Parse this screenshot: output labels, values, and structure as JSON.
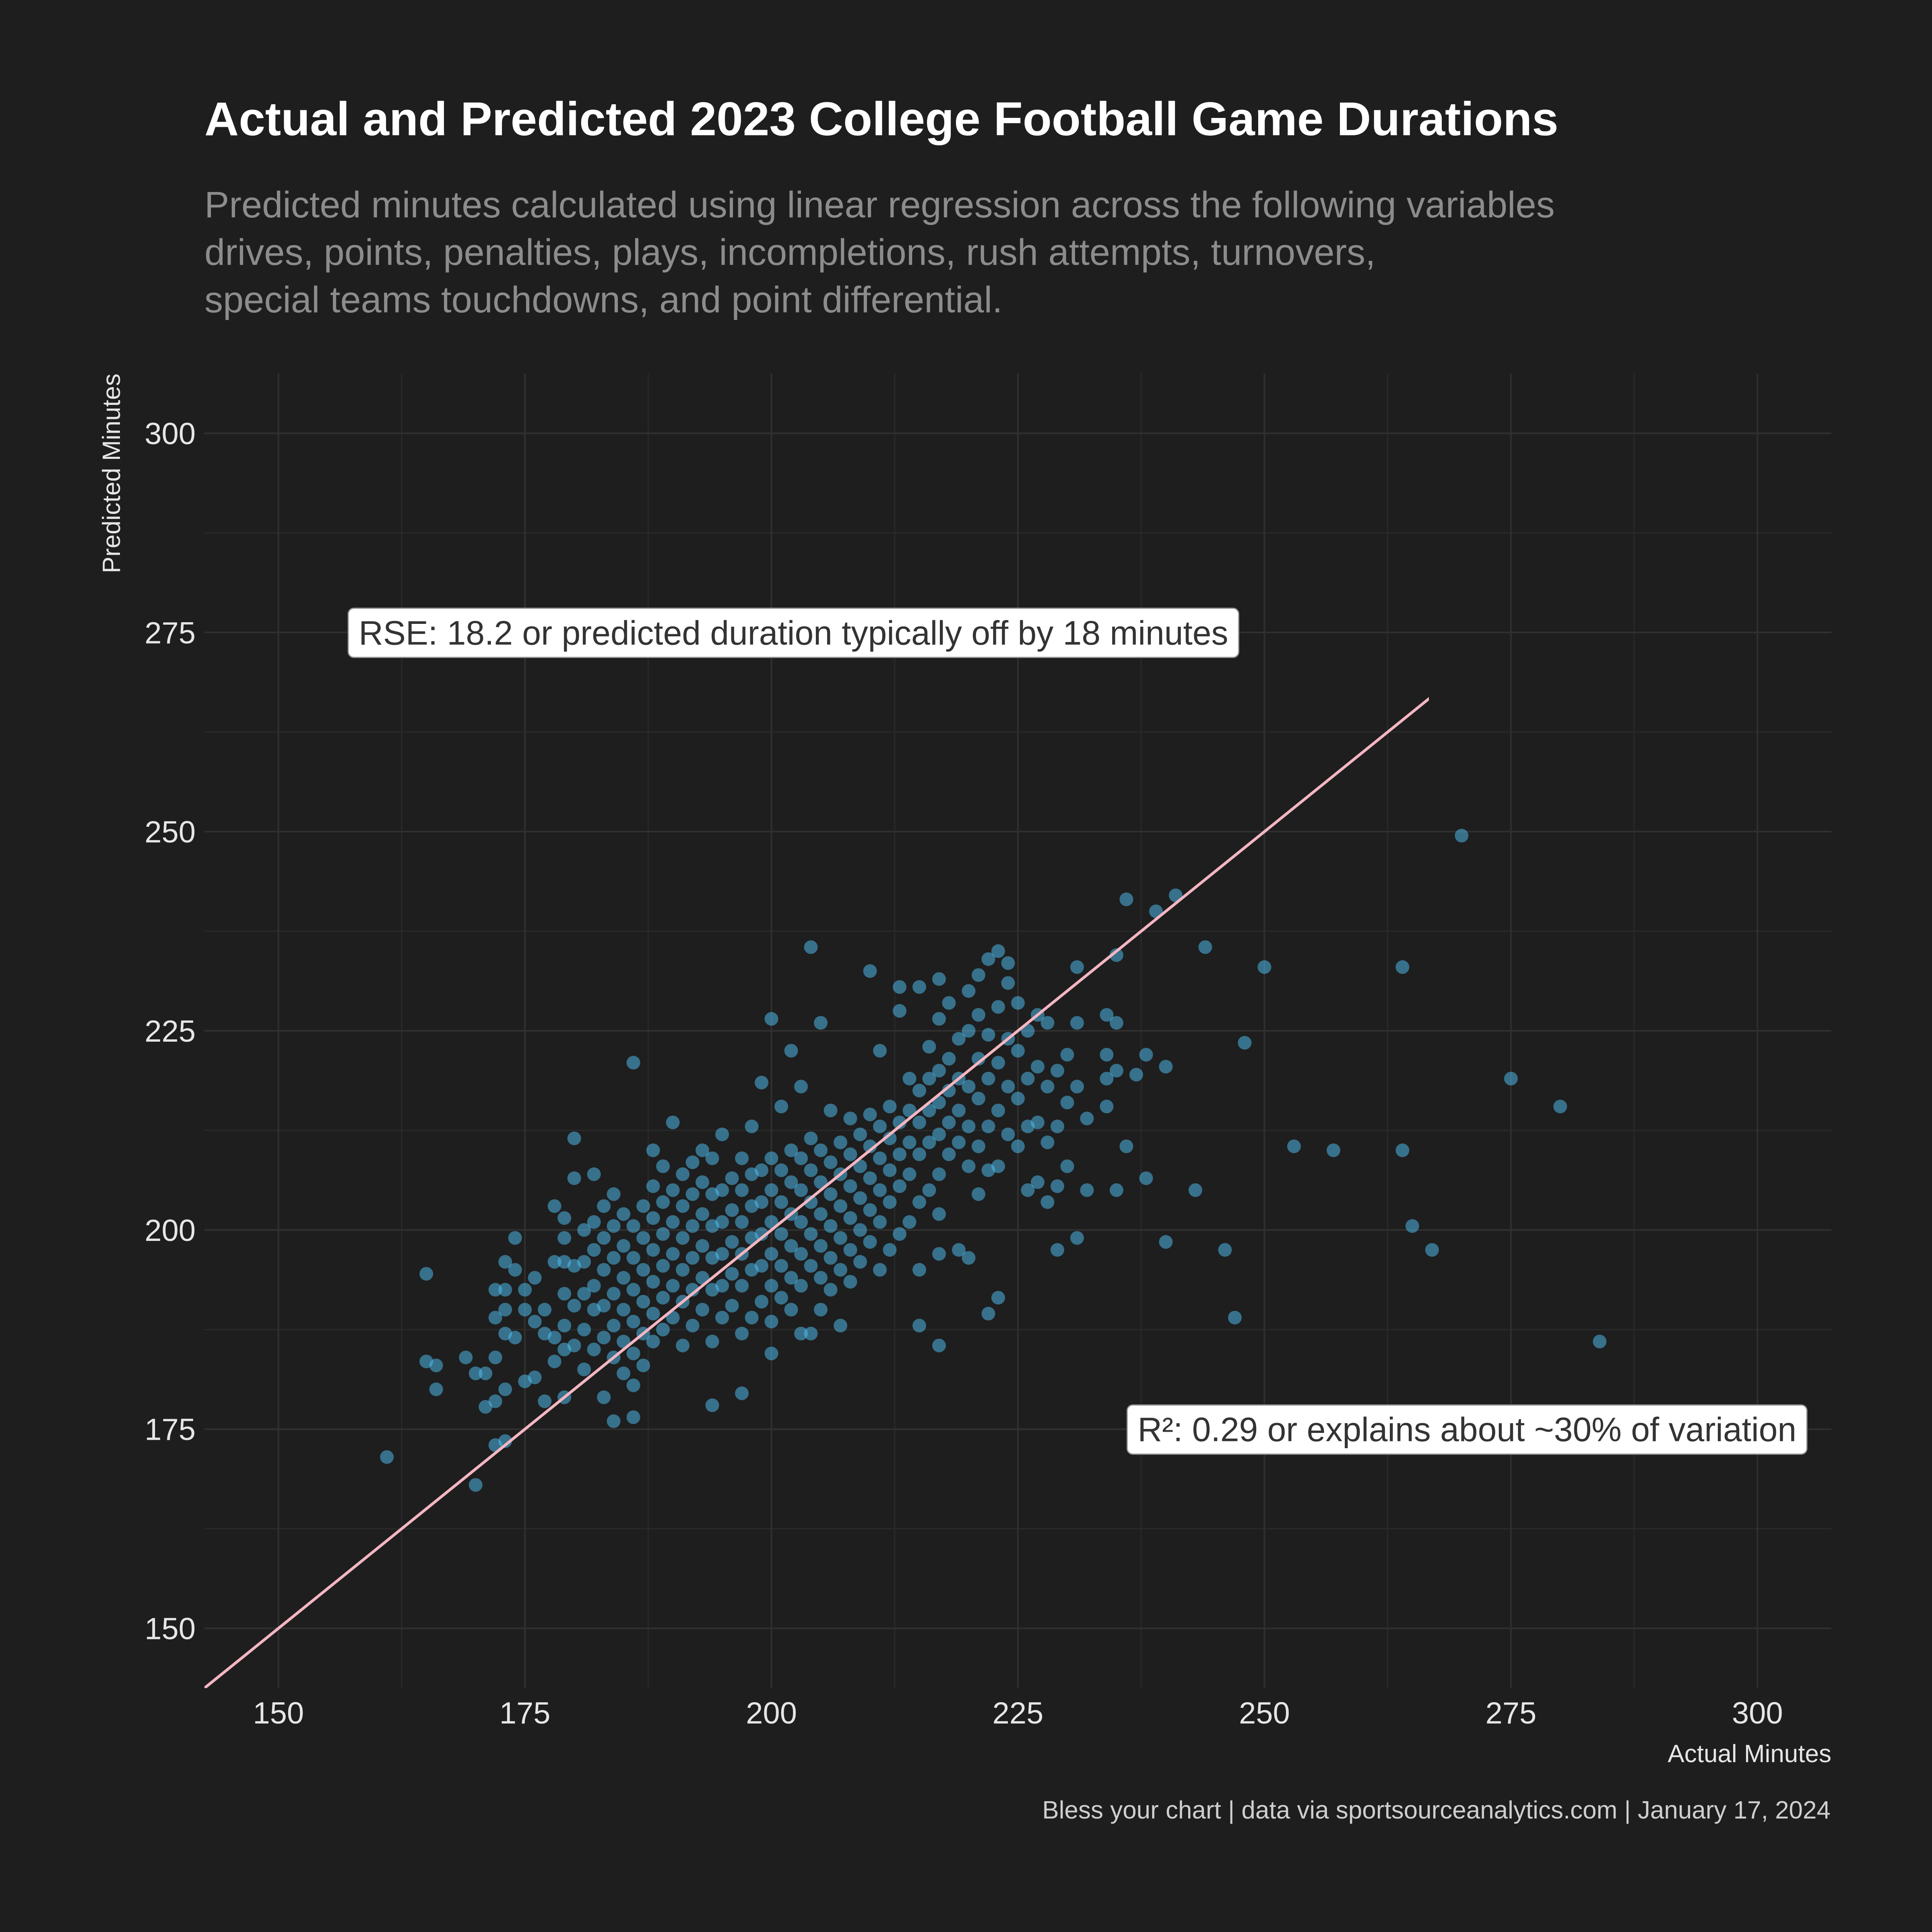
{
  "title": "Actual and Predicted 2023 College Football Game Durations",
  "subtitle": [
    "Predicted minutes calculated using linear regression across the following variables",
    "drives, points, penalties, plays, incompletions, rush attempts, turnovers,",
    "special teams touchdowns, and point differential."
  ],
  "caption": "Bless your chart | data via sportsourceanalytics.com | January 17, 2024",
  "chart_data": {
    "type": "scatter",
    "xlabel": "Actual Minutes",
    "ylabel": "Predicted Minutes",
    "xlim": [
      142.5,
      307.5
    ],
    "ylim": [
      142.5,
      307.5
    ],
    "x_ticks": [
      150,
      175,
      200,
      225,
      250,
      275,
      300
    ],
    "y_ticks": [
      150,
      175,
      200,
      225,
      250,
      275,
      300
    ],
    "grid": true,
    "reference_line": {
      "type": "identity",
      "label": "y = x",
      "color": "#f4b6c2"
    },
    "point_color": "#4fc3f7",
    "annotations": [
      {
        "text": "RSE: 18.2 or predicted duration typically off by 18 minutes",
        "x": 157,
        "y": 275
      },
      {
        "text": "R²: 0.29 or explains about ~30% of variation",
        "x": 236,
        "y": 175
      }
    ],
    "points": [
      [
        161,
        171.5
      ],
      [
        165,
        194.5
      ],
      [
        165,
        183.5
      ],
      [
        166,
        183
      ],
      [
        166,
        180
      ],
      [
        169,
        184
      ],
      [
        170,
        168
      ],
      [
        170,
        182
      ],
      [
        171,
        177.8
      ],
      [
        171,
        182
      ],
      [
        172,
        173
      ],
      [
        172,
        178.5
      ],
      [
        172,
        184
      ],
      [
        172,
        192.5
      ],
      [
        172,
        189
      ],
      [
        173,
        173.5
      ],
      [
        173,
        180
      ],
      [
        173,
        187
      ],
      [
        173,
        190
      ],
      [
        173,
        196
      ],
      [
        173,
        192.5
      ],
      [
        174,
        199
      ],
      [
        174,
        195
      ],
      [
        174,
        186.5
      ],
      [
        175,
        181
      ],
      [
        175,
        190
      ],
      [
        175,
        192.5
      ],
      [
        176,
        181.5
      ],
      [
        176,
        188.5
      ],
      [
        176,
        194
      ],
      [
        177,
        178.5
      ],
      [
        177,
        187
      ],
      [
        177,
        190
      ],
      [
        178,
        183.5
      ],
      [
        178,
        186.5
      ],
      [
        178,
        196
      ],
      [
        178,
        203
      ],
      [
        179,
        179
      ],
      [
        179,
        185
      ],
      [
        179,
        188
      ],
      [
        179,
        192
      ],
      [
        179,
        196
      ],
      [
        179,
        199
      ],
      [
        179,
        201.5
      ],
      [
        180,
        185.5
      ],
      [
        180,
        190.5
      ],
      [
        180,
        195.5
      ],
      [
        180,
        211.5
      ],
      [
        180,
        206.5
      ],
      [
        181,
        182.5
      ],
      [
        181,
        187.5
      ],
      [
        181,
        192
      ],
      [
        181,
        196
      ],
      [
        181,
        200
      ],
      [
        182,
        185
      ],
      [
        182,
        190
      ],
      [
        182,
        193
      ],
      [
        182,
        197.5
      ],
      [
        182,
        201
      ],
      [
        182,
        207
      ],
      [
        183,
        179
      ],
      [
        183,
        186.5
      ],
      [
        183,
        190.5
      ],
      [
        183,
        195
      ],
      [
        183,
        199
      ],
      [
        183,
        203
      ],
      [
        184,
        176
      ],
      [
        184,
        184
      ],
      [
        184,
        188
      ],
      [
        184,
        192
      ],
      [
        184,
        196.5
      ],
      [
        184,
        200.5
      ],
      [
        184,
        204.5
      ],
      [
        185,
        182
      ],
      [
        185,
        186
      ],
      [
        185,
        190
      ],
      [
        185,
        194
      ],
      [
        185,
        198
      ],
      [
        185,
        202
      ],
      [
        186,
        176.5
      ],
      [
        186,
        180.5
      ],
      [
        186,
        184.5
      ],
      [
        186,
        188.5
      ],
      [
        186,
        192.5
      ],
      [
        186,
        196.5
      ],
      [
        186,
        200.5
      ],
      [
        186,
        221
      ],
      [
        187,
        183
      ],
      [
        187,
        187
      ],
      [
        187,
        191
      ],
      [
        187,
        195
      ],
      [
        187,
        199
      ],
      [
        187,
        203
      ],
      [
        188,
        186
      ],
      [
        188,
        189.5
      ],
      [
        188,
        193.5
      ],
      [
        188,
        197.5
      ],
      [
        188,
        201.5
      ],
      [
        188,
        205.5
      ],
      [
        188,
        210
      ],
      [
        189,
        187.5
      ],
      [
        189,
        191.5
      ],
      [
        189,
        195.5
      ],
      [
        189,
        199.5
      ],
      [
        189,
        203.5
      ],
      [
        189,
        208
      ],
      [
        190,
        189
      ],
      [
        190,
        193
      ],
      [
        190,
        197
      ],
      [
        190,
        201
      ],
      [
        190,
        205
      ],
      [
        190,
        213.5
      ],
      [
        191,
        185.5
      ],
      [
        191,
        191
      ],
      [
        191,
        195
      ],
      [
        191,
        199
      ],
      [
        191,
        203
      ],
      [
        191,
        207
      ],
      [
        192,
        188
      ],
      [
        192,
        192.5
      ],
      [
        192,
        196.5
      ],
      [
        192,
        200.5
      ],
      [
        192,
        204.5
      ],
      [
        192,
        208.5
      ],
      [
        193,
        190
      ],
      [
        193,
        194
      ],
      [
        193,
        198
      ],
      [
        193,
        202
      ],
      [
        193,
        206
      ],
      [
        193,
        210
      ],
      [
        194,
        178
      ],
      [
        194,
        186
      ],
      [
        194,
        192.5
      ],
      [
        194,
        196.5
      ],
      [
        194,
        200.5
      ],
      [
        194,
        204.5
      ],
      [
        194,
        209
      ],
      [
        195,
        189
      ],
      [
        195,
        193
      ],
      [
        195,
        197
      ],
      [
        195,
        201
      ],
      [
        195,
        205
      ],
      [
        195,
        212
      ],
      [
        196,
        190.5
      ],
      [
        196,
        194.5
      ],
      [
        196,
        198.5
      ],
      [
        196,
        202.5
      ],
      [
        196,
        206.5
      ],
      [
        197,
        179.5
      ],
      [
        197,
        187
      ],
      [
        197,
        193
      ],
      [
        197,
        197
      ],
      [
        197,
        201
      ],
      [
        197,
        205
      ],
      [
        197,
        209
      ],
      [
        198,
        189
      ],
      [
        198,
        195
      ],
      [
        198,
        199
      ],
      [
        198,
        203
      ],
      [
        198,
        207
      ],
      [
        198,
        213
      ],
      [
        199,
        191
      ],
      [
        199,
        195.5
      ],
      [
        199,
        199.5
      ],
      [
        199,
        203.5
      ],
      [
        199,
        207.5
      ],
      [
        199,
        218.5
      ],
      [
        200,
        184.5
      ],
      [
        200,
        188.5
      ],
      [
        200,
        193
      ],
      [
        200,
        197
      ],
      [
        200,
        201
      ],
      [
        200,
        205
      ],
      [
        200,
        209
      ],
      [
        200,
        226.5
      ],
      [
        201,
        191.5
      ],
      [
        201,
        195.5
      ],
      [
        201,
        199.5
      ],
      [
        201,
        203.5
      ],
      [
        201,
        207.5
      ],
      [
        201,
        215.5
      ],
      [
        202,
        190
      ],
      [
        202,
        194
      ],
      [
        202,
        198
      ],
      [
        202,
        202
      ],
      [
        202,
        206
      ],
      [
        202,
        210
      ],
      [
        202,
        222.5
      ],
      [
        203,
        187
      ],
      [
        203,
        193
      ],
      [
        203,
        197
      ],
      [
        203,
        201
      ],
      [
        203,
        205
      ],
      [
        203,
        209
      ],
      [
        203,
        218
      ],
      [
        204,
        187
      ],
      [
        204,
        195.5
      ],
      [
        204,
        199.5
      ],
      [
        204,
        203.5
      ],
      [
        204,
        207.5
      ],
      [
        204,
        211.5
      ],
      [
        204,
        235.5
      ],
      [
        205,
        190
      ],
      [
        205,
        194
      ],
      [
        205,
        198
      ],
      [
        205,
        202
      ],
      [
        205,
        206
      ],
      [
        205,
        210
      ],
      [
        205,
        226
      ],
      [
        206,
        192.5
      ],
      [
        206,
        196.5
      ],
      [
        206,
        200.5
      ],
      [
        206,
        204.5
      ],
      [
        206,
        208.5
      ],
      [
        206,
        215
      ],
      [
        207,
        188
      ],
      [
        207,
        195
      ],
      [
        207,
        199
      ],
      [
        207,
        203
      ],
      [
        207,
        207
      ],
      [
        207,
        211
      ],
      [
        208,
        193.5
      ],
      [
        208,
        197.5
      ],
      [
        208,
        201.5
      ],
      [
        208,
        205.5
      ],
      [
        208,
        209.5
      ],
      [
        208,
        214
      ],
      [
        209,
        196
      ],
      [
        209,
        200
      ],
      [
        209,
        204
      ],
      [
        209,
        208
      ],
      [
        209,
        212
      ],
      [
        210,
        198.5
      ],
      [
        210,
        202.5
      ],
      [
        210,
        206.5
      ],
      [
        210,
        210.5
      ],
      [
        210,
        214.5
      ],
      [
        210,
        232.5
      ],
      [
        211,
        195
      ],
      [
        211,
        201
      ],
      [
        211,
        205
      ],
      [
        211,
        209
      ],
      [
        211,
        213
      ],
      [
        211,
        222.5
      ],
      [
        212,
        197.5
      ],
      [
        212,
        203.5
      ],
      [
        212,
        207.5
      ],
      [
        212,
        211.5
      ],
      [
        212,
        215.5
      ],
      [
        213,
        199.5
      ],
      [
        213,
        205.5
      ],
      [
        213,
        209.5
      ],
      [
        213,
        213.5
      ],
      [
        213,
        230.5
      ],
      [
        213,
        227.5
      ],
      [
        214,
        201
      ],
      [
        214,
        207
      ],
      [
        214,
        211
      ],
      [
        214,
        215
      ],
      [
        214,
        219
      ],
      [
        215,
        188
      ],
      [
        215,
        195
      ],
      [
        215,
        203.5
      ],
      [
        215,
        209.5
      ],
      [
        215,
        213.5
      ],
      [
        215,
        217.5
      ],
      [
        215,
        230.5
      ],
      [
        216,
        205
      ],
      [
        216,
        211
      ],
      [
        216,
        215
      ],
      [
        216,
        219
      ],
      [
        216,
        223
      ],
      [
        217,
        185.5
      ],
      [
        217,
        197
      ],
      [
        217,
        202
      ],
      [
        217,
        207
      ],
      [
        217,
        212
      ],
      [
        217,
        216
      ],
      [
        217,
        220
      ],
      [
        217,
        226.5
      ],
      [
        217,
        231.5
      ],
      [
        218,
        209.5
      ],
      [
        218,
        213.5
      ],
      [
        218,
        217.5
      ],
      [
        218,
        221.5
      ],
      [
        218,
        228.5
      ],
      [
        219,
        197.5
      ],
      [
        219,
        211
      ],
      [
        219,
        215
      ],
      [
        219,
        219
      ],
      [
        219,
        224
      ],
      [
        220,
        196.5
      ],
      [
        220,
        208
      ],
      [
        220,
        213
      ],
      [
        220,
        218
      ],
      [
        220,
        225
      ],
      [
        220,
        230
      ],
      [
        221,
        204.5
      ],
      [
        221,
        210.5
      ],
      [
        221,
        216.5
      ],
      [
        221,
        221.5
      ],
      [
        221,
        227
      ],
      [
        221,
        232
      ],
      [
        222,
        189.5
      ],
      [
        222,
        207.5
      ],
      [
        222,
        213
      ],
      [
        222,
        219
      ],
      [
        222,
        224.5
      ],
      [
        222,
        234
      ],
      [
        223,
        191.5
      ],
      [
        223,
        208
      ],
      [
        223,
        215
      ],
      [
        223,
        221
      ],
      [
        223,
        228
      ],
      [
        223,
        235
      ],
      [
        224,
        212
      ],
      [
        224,
        218
      ],
      [
        224,
        224
      ],
      [
        224,
        231
      ],
      [
        224,
        233.5
      ],
      [
        225,
        210.5
      ],
      [
        225,
        216.5
      ],
      [
        225,
        222.5
      ],
      [
        225,
        228.5
      ],
      [
        226,
        205
      ],
      [
        226,
        213
      ],
      [
        226,
        219
      ],
      [
        226,
        225
      ],
      [
        227,
        206
      ],
      [
        227,
        213.5
      ],
      [
        227,
        220.5
      ],
      [
        227,
        227
      ],
      [
        228,
        203.5
      ],
      [
        228,
        211
      ],
      [
        228,
        218
      ],
      [
        228,
        226
      ],
      [
        229,
        197.5
      ],
      [
        229,
        205.5
      ],
      [
        229,
        213
      ],
      [
        229,
        220
      ],
      [
        230,
        208
      ],
      [
        230,
        216
      ],
      [
        230,
        222
      ],
      [
        231,
        199
      ],
      [
        231,
        218
      ],
      [
        231,
        226
      ],
      [
        231,
        233
      ],
      [
        232,
        205
      ],
      [
        232,
        214
      ],
      [
        234,
        215.5
      ],
      [
        234,
        219
      ],
      [
        234,
        222
      ],
      [
        234,
        227
      ],
      [
        235,
        205
      ],
      [
        235,
        220
      ],
      [
        235,
        226
      ],
      [
        235,
        234.5
      ],
      [
        236,
        210.5
      ],
      [
        236,
        241.5
      ],
      [
        237,
        219.5
      ],
      [
        238,
        222
      ],
      [
        238,
        206.5
      ],
      [
        239,
        240
      ],
      [
        240,
        220.5
      ],
      [
        240,
        198.5
      ],
      [
        241,
        242
      ],
      [
        243,
        205
      ],
      [
        244,
        235.5
      ],
      [
        246,
        197.5
      ],
      [
        247,
        189
      ],
      [
        248,
        223.5
      ],
      [
        250,
        233
      ],
      [
        253,
        210.5
      ],
      [
        257,
        210
      ],
      [
        264,
        210
      ],
      [
        264,
        233
      ],
      [
        265,
        200.5
      ],
      [
        267,
        197.5
      ],
      [
        270,
        249.5
      ],
      [
        275,
        219
      ],
      [
        280,
        215.5
      ],
      [
        284,
        186
      ]
    ]
  }
}
